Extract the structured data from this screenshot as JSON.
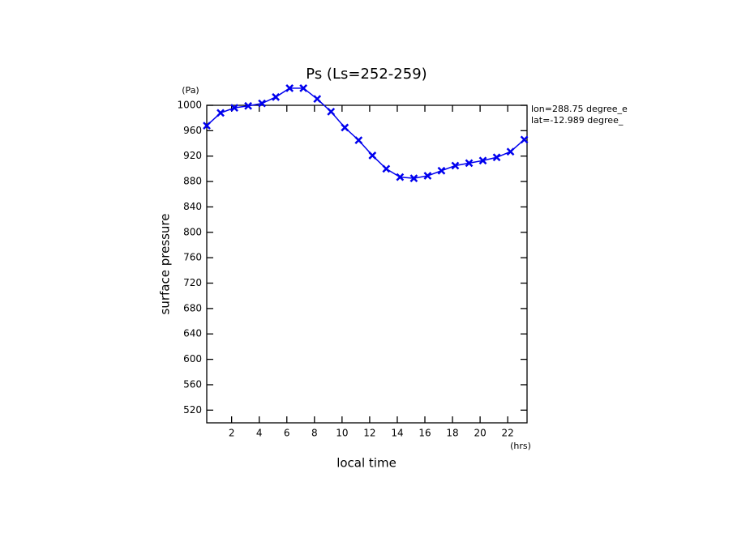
{
  "chart_data": {
    "type": "line",
    "title": "Ps (Ls=252-259)",
    "x_label": "local time",
    "y_label": "surface pressure",
    "y_unit": "(Pa)",
    "x_unit": "(hrs)",
    "annotations": [
      "lon=288.75 degree_e",
      "lat=-12.989 degree_"
    ],
    "x": [
      0.2,
      1.2,
      2.2,
      3.2,
      4.2,
      5.2,
      6.2,
      7.2,
      8.2,
      9.2,
      10.2,
      11.2,
      12.2,
      13.2,
      14.2,
      15.2,
      16.2,
      17.2,
      18.2,
      19.2,
      20.2,
      21.2,
      22.2,
      23.2
    ],
    "series": [
      {
        "color": "#0000ee",
        "marker": "x",
        "values": [
          968,
          988,
          996,
          999,
          1003,
          1013,
          1027,
          1027,
          1010,
          990,
          965,
          945,
          921,
          900,
          887,
          885,
          889,
          897,
          905,
          909,
          913,
          918,
          927,
          946
        ]
      }
    ],
    "xlim": [
      0.2,
      23.4
    ],
    "xticks": [
      2,
      4,
      6,
      8,
      10,
      12,
      14,
      16,
      18,
      20,
      22
    ],
    "ylim": [
      500,
      1000
    ],
    "yticks": [
      520,
      560,
      600,
      640,
      680,
      720,
      760,
      800,
      840,
      880,
      920,
      960,
      1000
    ],
    "grid": false
  }
}
